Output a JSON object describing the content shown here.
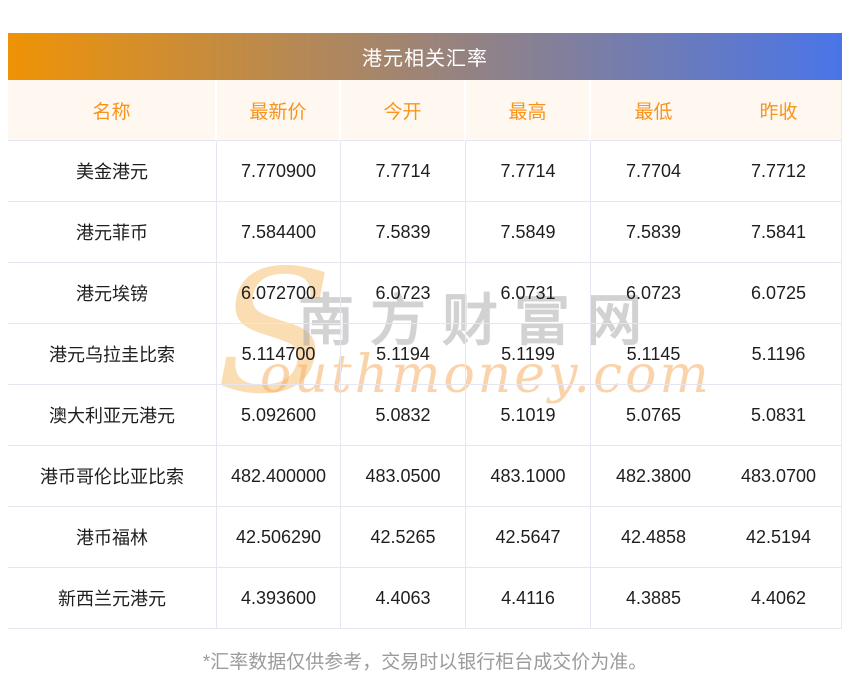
{
  "title": "港元相关汇率",
  "chart_data": {
    "type": "table",
    "title": "港元相关汇率",
    "columns": [
      "名称",
      "最新价",
      "今开",
      "最高",
      "最低",
      "昨收"
    ],
    "rows": [
      [
        "美金港元",
        "7.770900",
        "7.7714",
        "7.7714",
        "7.7704",
        "7.7712"
      ],
      [
        "港元菲币",
        "7.584400",
        "7.5839",
        "7.5849",
        "7.5839",
        "7.5841"
      ],
      [
        "港元埃镑",
        "6.072700",
        "6.0723",
        "6.0731",
        "6.0723",
        "6.0725"
      ],
      [
        "港元乌拉圭比索",
        "5.114700",
        "5.1194",
        "5.1199",
        "5.1145",
        "5.1196"
      ],
      [
        "澳大利亚元港元",
        "5.092600",
        "5.0832",
        "5.1019",
        "5.0765",
        "5.0831"
      ],
      [
        "港币哥伦比亚比索",
        "482.400000",
        "483.0500",
        "483.1000",
        "482.3800",
        "483.0700"
      ],
      [
        "港币福林",
        "42.506290",
        "42.5265",
        "42.5647",
        "42.4858",
        "42.5194"
      ],
      [
        "新西兰元港元",
        "4.393600",
        "4.4063",
        "4.4116",
        "4.3885",
        "4.4062"
      ]
    ]
  },
  "watermark": {
    "initial": "S",
    "cn": "南方财富网",
    "en": "outhmoney.com"
  },
  "footer": "*汇率数据仅供参考，交易时以银行柜台成交价为准。",
  "colors": {
    "gradient_start": "#EF9306",
    "gradient_end": "#4A75E8",
    "header_bg": "#FEF8F0",
    "header_text": "#F8941C",
    "cell_text": "#1E1E1E",
    "row_border": "#E6E5F0",
    "footer_text": "#9B9B9B",
    "watermark_orange": "#F5AE64",
    "watermark_gray": "#A5A5A5"
  }
}
